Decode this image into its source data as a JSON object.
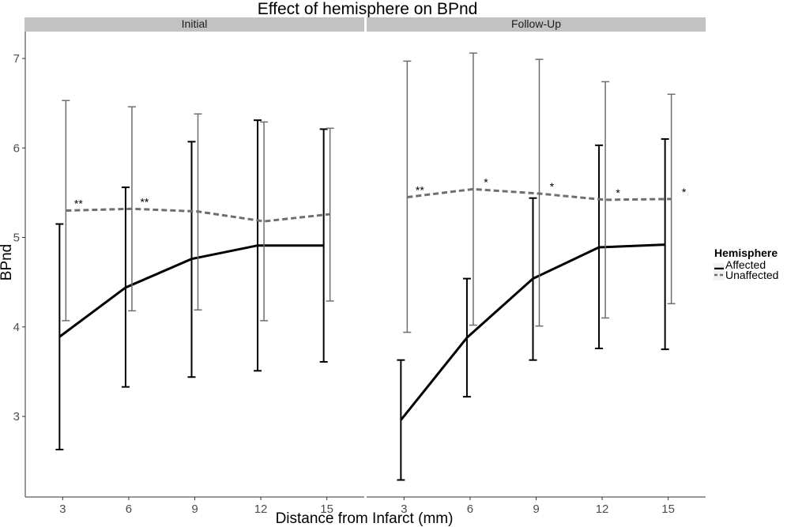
{
  "chart_data": {
    "type": "line",
    "title": "Effect of hemisphere on BPnd",
    "xlabel": "Distance from Infarct (mm)",
    "ylabel": "BPnd",
    "x": [
      3,
      6,
      9,
      12,
      15
    ],
    "x_ticks": [
      "3",
      "6",
      "9",
      "12",
      "15"
    ],
    "y_ticks": [
      "3",
      "4",
      "5",
      "6",
      "7"
    ],
    "xlim": [
      1.3,
      16.7
    ],
    "ylim": [
      2.1,
      7.3
    ],
    "grid": false,
    "legend": {
      "title": "Hemisphere",
      "placement": "right",
      "entries": [
        "Affected",
        "Unaffected"
      ]
    },
    "colors": {
      "Affected": "#000000",
      "Unaffected": "#6e6e6e",
      "strip": "#c2c2c2",
      "axis": "#333333"
    },
    "panels": [
      {
        "name": "Initial",
        "series": [
          {
            "name": "Affected",
            "style": "solid",
            "values": [
              3.89,
              4.44,
              4.76,
              4.91,
              4.91
            ],
            "err_low": [
              2.63,
              3.33,
              3.44,
              3.51,
              3.61
            ],
            "err_high": [
              5.15,
              5.56,
              6.07,
              6.31,
              6.21
            ]
          },
          {
            "name": "Unaffected",
            "style": "dashed",
            "values": [
              5.3,
              5.32,
              5.29,
              5.18,
              5.26
            ],
            "err_low": [
              4.07,
              4.18,
              4.19,
              4.07,
              4.29
            ],
            "err_high": [
              6.53,
              6.46,
              6.38,
              6.29,
              6.22
            ]
          }
        ],
        "annotations": [
          {
            "x": 3,
            "label": "**"
          },
          {
            "x": 6,
            "label": "**"
          }
        ]
      },
      {
        "name": "Follow-Up",
        "series": [
          {
            "name": "Affected",
            "style": "solid",
            "values": [
              2.96,
              3.88,
              4.54,
              4.89,
              4.92
            ],
            "err_low": [
              2.29,
              3.22,
              3.63,
              3.76,
              3.75
            ],
            "err_high": [
              3.63,
              4.54,
              5.44,
              6.03,
              6.1
            ]
          },
          {
            "name": "Unaffected",
            "style": "dashed",
            "values": [
              5.45,
              5.54,
              5.49,
              5.42,
              5.43
            ],
            "err_low": [
              3.94,
              4.02,
              4.01,
              4.1,
              4.26
            ],
            "err_high": [
              6.97,
              7.06,
              6.99,
              6.74,
              6.6
            ]
          }
        ],
        "annotations": [
          {
            "x": 3,
            "label": "**"
          },
          {
            "x": 6,
            "label": "*"
          },
          {
            "x": 9,
            "label": "*"
          },
          {
            "x": 12,
            "label": "*"
          },
          {
            "x": 15,
            "label": "*"
          }
        ]
      }
    ]
  }
}
